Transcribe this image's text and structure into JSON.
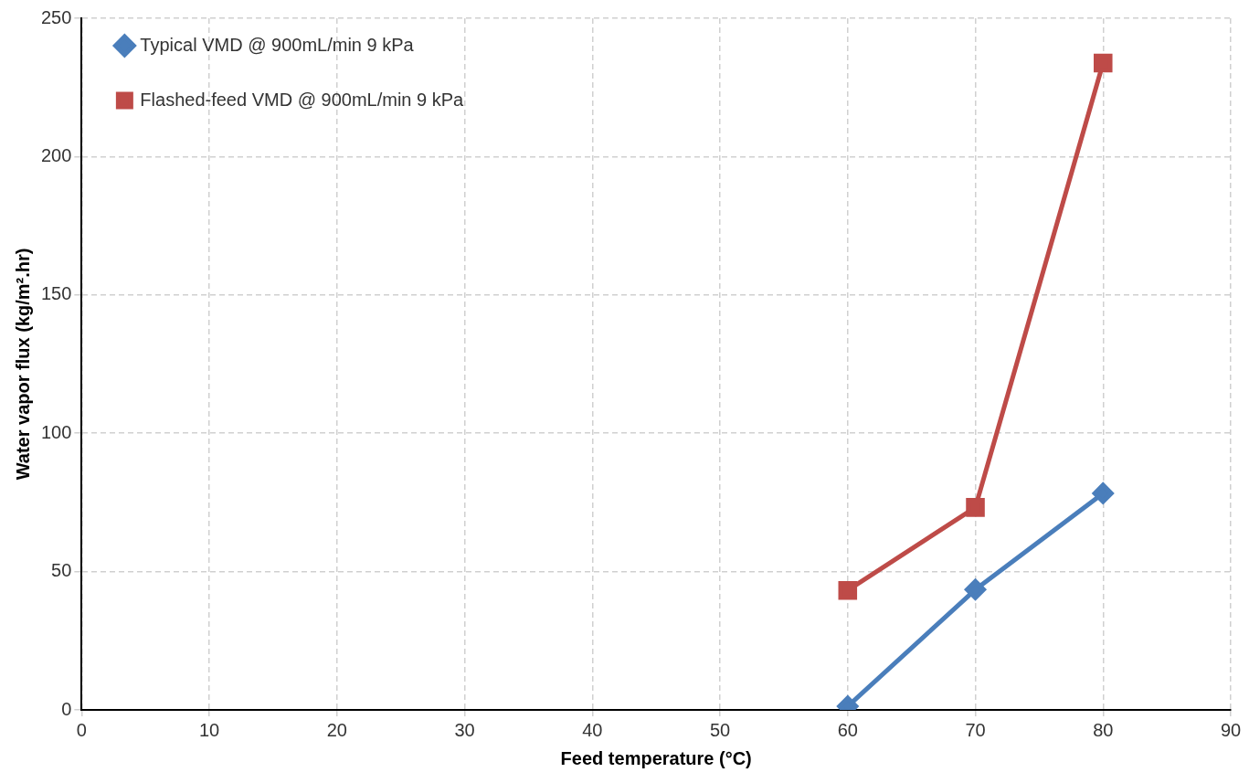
{
  "chart_data": {
    "type": "line",
    "xlabel": "Feed temperature (°C)",
    "ylabel": "Water vapor flux (kg/m².hr)",
    "x": [
      60,
      70,
      80
    ],
    "series": [
      {
        "name": "Typical VMD @ 900mL/min 9 kPa",
        "color": "#4a7ebb",
        "marker": "diamond",
        "values": [
          1.3,
          43.5,
          78.3
        ]
      },
      {
        "name": "Flashed-feed VMD @ 900mL/min 9 kPa",
        "color": "#be4b48",
        "marker": "square",
        "values": [
          43.2,
          73.2,
          233.8
        ]
      }
    ],
    "xlim": [
      0,
      90
    ],
    "xticks": [
      0,
      10,
      20,
      30,
      40,
      50,
      60,
      70,
      80,
      90
    ],
    "ylim": [
      0,
      250
    ],
    "yticks": [
      0,
      50,
      100,
      150,
      200,
      250
    ],
    "grid": true,
    "legend": "top left",
    "line_style": "solid"
  }
}
